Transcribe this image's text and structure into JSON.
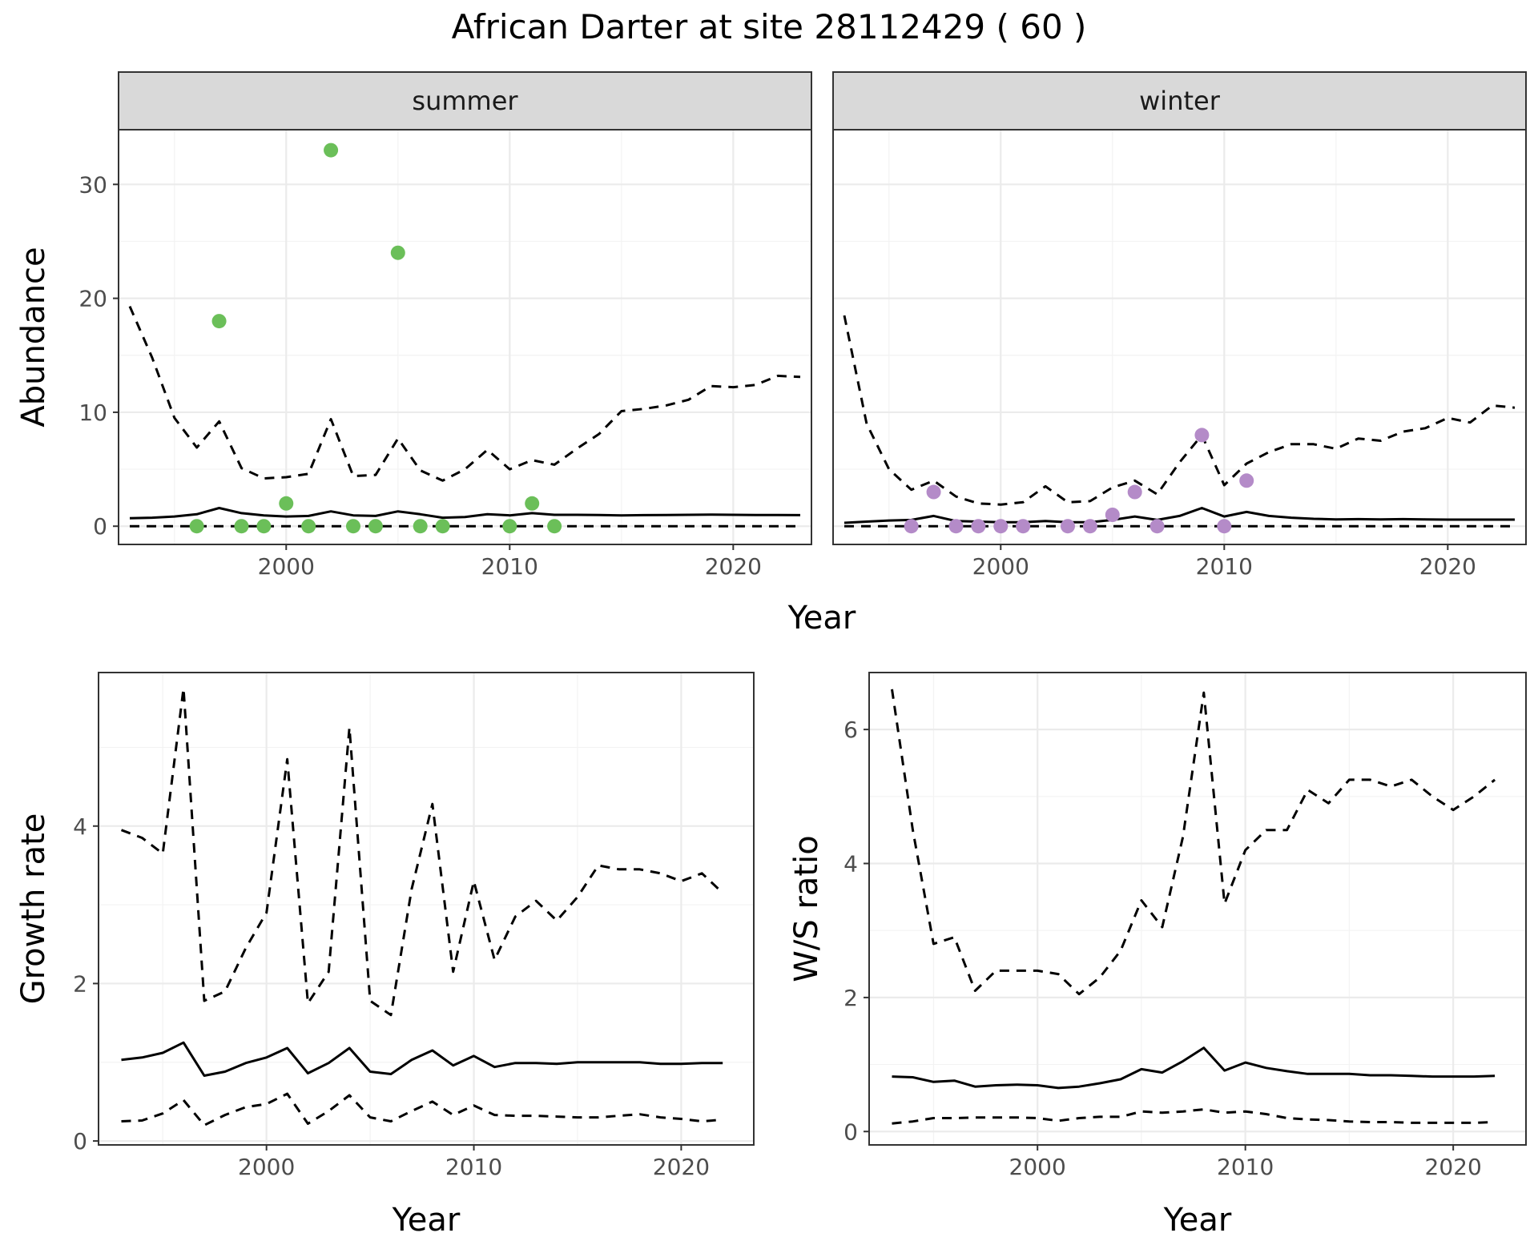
{
  "title": "African Darter at site 28112429 ( 60 )",
  "colors": {
    "summer": "#6bbf59",
    "winter": "#b48bc8",
    "lines": "#000000"
  },
  "chart_data": [
    {
      "type": "line",
      "facet": "summer",
      "xlabel": "Year",
      "ylabel": "Abundance",
      "xlim": [
        1992.5,
        2023.5
      ],
      "ylim": [
        -1.6,
        34.8
      ],
      "xticks": [
        2000,
        2010,
        2020
      ],
      "yticks": [
        0,
        10,
        20,
        30
      ],
      "lines": {
        "x": [
          1993,
          1994,
          1995,
          1996,
          1997,
          1998,
          1999,
          2000,
          2001,
          2002,
          2003,
          2004,
          2005,
          2006,
          2007,
          2008,
          2009,
          2010,
          2011,
          2012,
          2013,
          2014,
          2015,
          2016,
          2017,
          2018,
          2019,
          2020,
          2021,
          2022,
          2023
        ],
        "mean": [
          0.7,
          0.75,
          0.85,
          1.05,
          1.6,
          1.15,
          0.95,
          0.85,
          0.9,
          1.3,
          0.95,
          0.9,
          1.3,
          1.05,
          0.75,
          0.8,
          1.05,
          0.95,
          1.15,
          1.0,
          1.0,
          0.98,
          0.95,
          0.97,
          0.98,
          1.0,
          1.02,
          1.0,
          0.98,
          0.98,
          0.97
        ],
        "upper": [
          19.3,
          14.8,
          9.5,
          6.9,
          9.2,
          5.1,
          4.2,
          4.3,
          4.6,
          9.4,
          4.4,
          4.5,
          7.7,
          4.9,
          4.0,
          5.0,
          6.7,
          5.0,
          5.8,
          5.4,
          6.8,
          8.1,
          10.1,
          10.3,
          10.6,
          11.1,
          12.3,
          12.2,
          12.4,
          13.2,
          13.1
        ],
        "lower": [
          0,
          0,
          0,
          0,
          0,
          0,
          0,
          0,
          0,
          0,
          0,
          0,
          0,
          0,
          0,
          0,
          0,
          0,
          0,
          0,
          0,
          0,
          0,
          0,
          0,
          0,
          0,
          0,
          0,
          0,
          0
        ]
      },
      "points": [
        {
          "x": 1996,
          "y": 0
        },
        {
          "x": 1997,
          "y": 18
        },
        {
          "x": 1998,
          "y": 0
        },
        {
          "x": 1999,
          "y": 0
        },
        {
          "x": 2000,
          "y": 2
        },
        {
          "x": 2001,
          "y": 0
        },
        {
          "x": 2002,
          "y": 33
        },
        {
          "x": 2003,
          "y": 0
        },
        {
          "x": 2004,
          "y": 0
        },
        {
          "x": 2005,
          "y": 24
        },
        {
          "x": 2006,
          "y": 0
        },
        {
          "x": 2007,
          "y": 0
        },
        {
          "x": 2010,
          "y": 0
        },
        {
          "x": 2011,
          "y": 2
        },
        {
          "x": 2012,
          "y": 0
        }
      ]
    },
    {
      "type": "line",
      "facet": "winter",
      "xlabel": "Year",
      "ylabel": "Abundance",
      "xlim": [
        1992.5,
        2023.5
      ],
      "ylim": [
        -1.6,
        34.8
      ],
      "xticks": [
        2000,
        2010,
        2020
      ],
      "yticks": [
        0,
        10,
        20,
        30
      ],
      "lines": {
        "x": [
          1993,
          1994,
          1995,
          1996,
          1997,
          1998,
          1999,
          2000,
          2001,
          2002,
          2003,
          2004,
          2005,
          2006,
          2007,
          2008,
          2009,
          2010,
          2011,
          2012,
          2013,
          2014,
          2015,
          2016,
          2017,
          2018,
          2019,
          2020,
          2021,
          2022,
          2023
        ],
        "mean": [
          0.3,
          0.4,
          0.5,
          0.55,
          0.9,
          0.45,
          0.4,
          0.35,
          0.35,
          0.45,
          0.35,
          0.35,
          0.55,
          0.85,
          0.55,
          0.9,
          1.6,
          0.85,
          1.25,
          0.9,
          0.75,
          0.65,
          0.6,
          0.62,
          0.6,
          0.62,
          0.6,
          0.58,
          0.58,
          0.58,
          0.58
        ],
        "upper": [
          18.5,
          9.0,
          5.0,
          3.2,
          4.0,
          2.6,
          2.0,
          1.9,
          2.1,
          3.5,
          2.1,
          2.2,
          3.4,
          4.0,
          2.8,
          5.6,
          8.0,
          3.6,
          5.5,
          6.5,
          7.2,
          7.2,
          6.8,
          7.7,
          7.5,
          8.3,
          8.6,
          9.5,
          9.1,
          10.6,
          10.4
        ],
        "lower": [
          0,
          0,
          0,
          0,
          0,
          0,
          0,
          0,
          0,
          0,
          0,
          0,
          0,
          0,
          0,
          0,
          0,
          0,
          0,
          0,
          0,
          0,
          0,
          0,
          0,
          0,
          0,
          0,
          0,
          0,
          0
        ]
      },
      "points": [
        {
          "x": 1996,
          "y": 0
        },
        {
          "x": 1997,
          "y": 3
        },
        {
          "x": 1998,
          "y": 0
        },
        {
          "x": 1999,
          "y": 0
        },
        {
          "x": 2000,
          "y": 0
        },
        {
          "x": 2001,
          "y": 0
        },
        {
          "x": 2003,
          "y": 0
        },
        {
          "x": 2004,
          "y": 0
        },
        {
          "x": 2005,
          "y": 1
        },
        {
          "x": 2006,
          "y": 3
        },
        {
          "x": 2007,
          "y": 0
        },
        {
          "x": 2009,
          "y": 8
        },
        {
          "x": 2010,
          "y": 0
        },
        {
          "x": 2011,
          "y": 4
        }
      ]
    },
    {
      "type": "line",
      "xlabel": "Year",
      "ylabel": "Growth rate",
      "xlim": [
        1991.9,
        2023.5
      ],
      "ylim": [
        -0.05,
        5.95
      ],
      "xticks": [
        2000,
        2010,
        2020
      ],
      "yticks": [
        0,
        2,
        4
      ],
      "lines": {
        "x": [
          1993,
          1994,
          1995,
          1996,
          1997,
          1998,
          1999,
          2000,
          2001,
          2002,
          2003,
          2004,
          2005,
          2006,
          2007,
          2008,
          2009,
          2010,
          2011,
          2012,
          2013,
          2014,
          2015,
          2016,
          2017,
          2018,
          2019,
          2020,
          2021,
          2022
        ],
        "mean": [
          1.03,
          1.06,
          1.12,
          1.25,
          0.83,
          0.88,
          0.99,
          1.06,
          1.18,
          0.86,
          0.99,
          1.18,
          0.88,
          0.85,
          1.03,
          1.15,
          0.96,
          1.08,
          0.94,
          0.99,
          0.99,
          0.98,
          1.0,
          1.0,
          1.0,
          1.0,
          0.98,
          0.98,
          0.99,
          0.99
        ],
        "upper": [
          3.95,
          3.85,
          3.65,
          5.75,
          1.78,
          1.9,
          2.45,
          2.9,
          4.85,
          1.75,
          2.15,
          5.25,
          1.78,
          1.6,
          3.2,
          4.28,
          2.15,
          3.3,
          2.3,
          2.85,
          3.05,
          2.8,
          3.1,
          3.5,
          3.45,
          3.45,
          3.4,
          3.3,
          3.4,
          3.15
        ],
        "lower": [
          0.25,
          0.26,
          0.35,
          0.52,
          0.2,
          0.33,
          0.43,
          0.47,
          0.6,
          0.22,
          0.38,
          0.58,
          0.3,
          0.25,
          0.38,
          0.5,
          0.33,
          0.45,
          0.33,
          0.32,
          0.32,
          0.31,
          0.3,
          0.3,
          0.32,
          0.34,
          0.3,
          0.28,
          0.25,
          0.27
        ]
      }
    },
    {
      "type": "line",
      "xlabel": "Year",
      "ylabel": "W/S ratio",
      "xlim": [
        1991.9,
        2023.5
      ],
      "ylim": [
        -0.2,
        6.85
      ],
      "xticks": [
        2000,
        2010,
        2020
      ],
      "yticks": [
        0,
        2,
        4,
        6
      ],
      "lines": {
        "x": [
          1993,
          1994,
          1995,
          1996,
          1997,
          1998,
          1999,
          2000,
          2001,
          2002,
          2003,
          2004,
          2005,
          2006,
          2007,
          2008,
          2009,
          2010,
          2011,
          2012,
          2013,
          2014,
          2015,
          2016,
          2017,
          2018,
          2019,
          2020,
          2021,
          2022
        ],
        "mean": [
          0.82,
          0.81,
          0.74,
          0.76,
          0.67,
          0.69,
          0.7,
          0.69,
          0.65,
          0.67,
          0.72,
          0.78,
          0.93,
          0.88,
          1.05,
          1.25,
          0.91,
          1.03,
          0.95,
          0.9,
          0.86,
          0.86,
          0.86,
          0.84,
          0.84,
          0.83,
          0.82,
          0.82,
          0.82,
          0.83
        ],
        "upper": [
          6.6,
          4.5,
          2.8,
          2.9,
          2.1,
          2.4,
          2.4,
          2.4,
          2.35,
          2.05,
          2.3,
          2.7,
          3.45,
          3.05,
          4.4,
          6.55,
          3.4,
          4.2,
          4.5,
          4.5,
          5.1,
          4.9,
          5.25,
          5.25,
          5.15,
          5.25,
          5.0,
          4.8,
          5.0,
          5.25
        ],
        "lower": [
          0.12,
          0.15,
          0.2,
          0.2,
          0.21,
          0.21,
          0.21,
          0.2,
          0.16,
          0.2,
          0.22,
          0.22,
          0.3,
          0.28,
          0.3,
          0.33,
          0.28,
          0.3,
          0.26,
          0.2,
          0.18,
          0.17,
          0.15,
          0.14,
          0.14,
          0.13,
          0.13,
          0.13,
          0.13,
          0.14
        ]
      }
    }
  ]
}
